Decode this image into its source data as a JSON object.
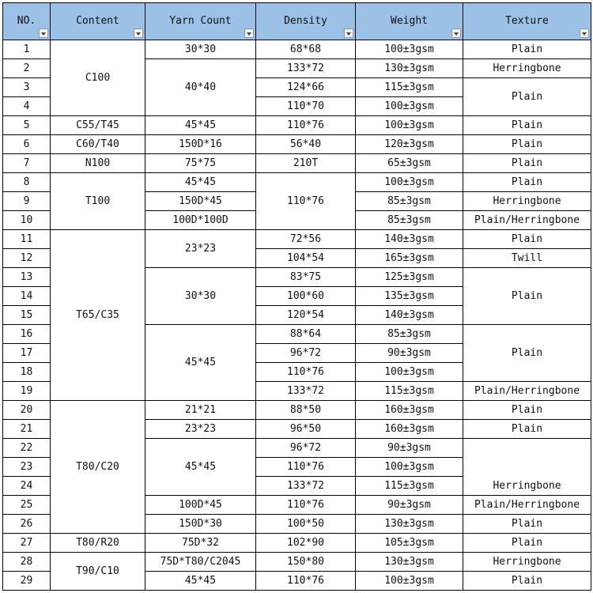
{
  "headers": [
    "NO.",
    "Content",
    "Yarn Count",
    "Density",
    "Weight",
    "Texture"
  ],
  "columns": [
    [
      {
        "t": "1"
      },
      {
        "t": "2"
      },
      {
        "t": "3"
      },
      {
        "t": "4"
      },
      {
        "t": "5"
      },
      {
        "t": "6"
      },
      {
        "t": "7"
      },
      {
        "t": "8"
      },
      {
        "t": "9"
      },
      {
        "t": "10"
      },
      {
        "t": "11"
      },
      {
        "t": "12"
      },
      {
        "t": "13"
      },
      {
        "t": "14"
      },
      {
        "t": "15"
      },
      {
        "t": "16"
      },
      {
        "t": "17"
      },
      {
        "t": "18"
      },
      {
        "t": "19"
      },
      {
        "t": "20"
      },
      {
        "t": "21"
      },
      {
        "t": "22"
      },
      {
        "t": "23"
      },
      {
        "t": "24"
      },
      {
        "t": "25"
      },
      {
        "t": "26"
      },
      {
        "t": "27"
      },
      {
        "t": "28"
      },
      {
        "t": "29"
      }
    ],
    [
      {
        "t": "C100",
        "s": 4
      },
      {
        "t": "C55/T45"
      },
      {
        "t": "C60/T40"
      },
      {
        "t": "N100"
      },
      {
        "t": "T100",
        "s": 3
      },
      {
        "t": "T65/C35",
        "s": 9
      },
      {
        "t": "T80/C20",
        "s": 7
      },
      {
        "t": "T80/R20"
      },
      {
        "t": "T90/C10",
        "s": 2
      }
    ],
    [
      {
        "t": "30*30"
      },
      {
        "t": "40*40",
        "s": 3
      },
      {
        "t": "45*45"
      },
      {
        "t": "150D*16"
      },
      {
        "t": "75*75"
      },
      {
        "t": "45*45"
      },
      {
        "t": "150D*45"
      },
      {
        "t": "100D*100D"
      },
      {
        "t": "23*23",
        "s": 2
      },
      {
        "t": "30*30",
        "s": 3
      },
      {
        "t": "45*45",
        "s": 4
      },
      {
        "t": "21*21"
      },
      {
        "t": "23*23"
      },
      {
        "t": "45*45",
        "s": 3
      },
      {
        "t": "100D*45"
      },
      {
        "t": "150D*30"
      },
      {
        "t": "75D*32"
      },
      {
        "t": "75D*T80/C2045"
      },
      {
        "t": "45*45"
      }
    ],
    [
      {
        "t": "68*68"
      },
      {
        "t": "133*72"
      },
      {
        "t": "124*66"
      },
      {
        "t": "110*70"
      },
      {
        "t": "110*76"
      },
      {
        "t": "56*40"
      },
      {
        "t": "210T"
      },
      {
        "t": "110*76",
        "s": 3
      },
      {
        "t": "72*56"
      },
      {
        "t": "104*54"
      },
      {
        "t": "83*75"
      },
      {
        "t": "100*60"
      },
      {
        "t": "120*54"
      },
      {
        "t": "88*64"
      },
      {
        "t": "96*72"
      },
      {
        "t": "110*76"
      },
      {
        "t": "133*72"
      },
      {
        "t": "88*50"
      },
      {
        "t": "96*50"
      },
      {
        "t": "96*72"
      },
      {
        "t": "110*76"
      },
      {
        "t": "133*72"
      },
      {
        "t": "110*76"
      },
      {
        "t": "100*50"
      },
      {
        "t": "102*90"
      },
      {
        "t": "150*80"
      },
      {
        "t": "110*76"
      }
    ],
    [
      {
        "t": "100±3gsm"
      },
      {
        "t": "130±3gsm"
      },
      {
        "t": "115±3gsm"
      },
      {
        "t": "100±3gsm"
      },
      {
        "t": "100±3gsm"
      },
      {
        "t": "120±3gsm"
      },
      {
        "t": "65±3gsm"
      },
      {
        "t": "100±3gsm"
      },
      {
        "t": "85±3gsm"
      },
      {
        "t": "85±3gsm"
      },
      {
        "t": "140±3gsm"
      },
      {
        "t": "165±3gsm"
      },
      {
        "t": "125±3gsm"
      },
      {
        "t": "135±3gsm"
      },
      {
        "t": "140±3gsm"
      },
      {
        "t": "85±3gsm"
      },
      {
        "t": "90±3gsm"
      },
      {
        "t": "100±3gsm"
      },
      {
        "t": "115±3gsm"
      },
      {
        "t": "160±3gsm"
      },
      {
        "t": "160±3gsm"
      },
      {
        "t": "90±3gsm"
      },
      {
        "t": "100±3gsm"
      },
      {
        "t": "115±3gsm"
      },
      {
        "t": "90±3gsm"
      },
      {
        "t": "130±3gsm"
      },
      {
        "t": "105±3gsm"
      },
      {
        "t": "130±3gsm"
      },
      {
        "t": "100±3gsm"
      }
    ],
    [
      {
        "t": "Plain"
      },
      {
        "t": "Herringbone"
      },
      {
        "t": "Plain",
        "s": 2
      },
      {
        "t": "Plain"
      },
      {
        "t": "Plain"
      },
      {
        "t": "Plain"
      },
      {
        "t": "Plain"
      },
      {
        "t": "Herringbone"
      },
      {
        "t": "Plain/Herringbone"
      },
      {
        "t": "Plain"
      },
      {
        "t": "Twill"
      },
      {
        "t": "Plain",
        "s": 3
      },
      {
        "t": "Plain",
        "s": 3
      },
      {
        "t": "Plain/Herringbone"
      },
      {
        "t": "Plain"
      },
      {
        "t": "Plain"
      },
      {
        "t": "Herringbone",
        "s": 3,
        "align": "bottom"
      },
      {
        "t": "Plain/Herringbone"
      },
      {
        "t": "Plain"
      },
      {
        "t": "Plain"
      },
      {
        "t": "Herringbone"
      },
      {
        "t": "Plain"
      }
    ]
  ],
  "colors": {
    "header_bg": "#9bc2e6",
    "grid": "#000000"
  }
}
